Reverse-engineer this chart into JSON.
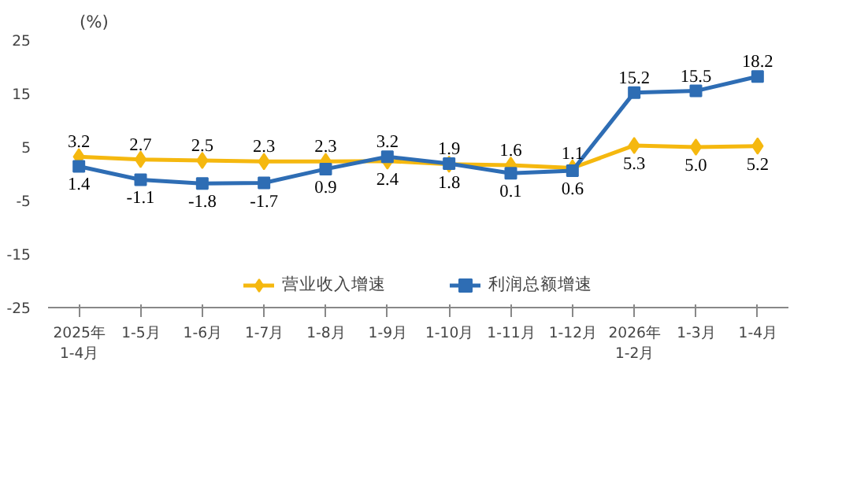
{
  "chart_data": {
    "type": "line",
    "ylabel": "(%)",
    "categories": [
      "2025年\n1-4月",
      "1-5月",
      "1-6月",
      "1-7月",
      "1-8月",
      "1-9月",
      "1-10月",
      "1-11月",
      "1-12月",
      "2026年\n1-2月",
      "1-3月",
      "1-4月"
    ],
    "series": [
      {
        "name": "营业收入增速",
        "color": "#f5b80f",
        "marker": "diamond",
        "values": [
          3.2,
          2.7,
          2.5,
          2.3,
          2.3,
          2.4,
          1.8,
          1.6,
          1.1,
          5.3,
          5.0,
          5.2
        ],
        "value_labels": [
          "3.2",
          "2.7",
          "2.5",
          "2.3",
          "2.3",
          "2.4",
          "1.8",
          "1.6",
          "1.1",
          "5.3",
          "5.0",
          "5.2"
        ]
      },
      {
        "name": "利润总额增速",
        "color": "#2e6db4",
        "marker": "square",
        "values": [
          1.4,
          -1.1,
          -1.8,
          -1.7,
          0.9,
          3.2,
          1.9,
          0.1,
          0.6,
          15.2,
          15.5,
          18.2
        ],
        "value_labels": [
          "1.4",
          "-1.1",
          "-1.8",
          "-1.7",
          "0.9",
          "3.2",
          "1.9",
          "0.1",
          "0.6",
          "15.2",
          "15.5",
          "18.2"
        ]
      }
    ],
    "ylim": [
      -25,
      25
    ],
    "yticks": [
      -25,
      -15,
      -5,
      5,
      15,
      25
    ],
    "grid": false,
    "legend": "bottom",
    "data_labels": true,
    "line_style": "solid"
  }
}
